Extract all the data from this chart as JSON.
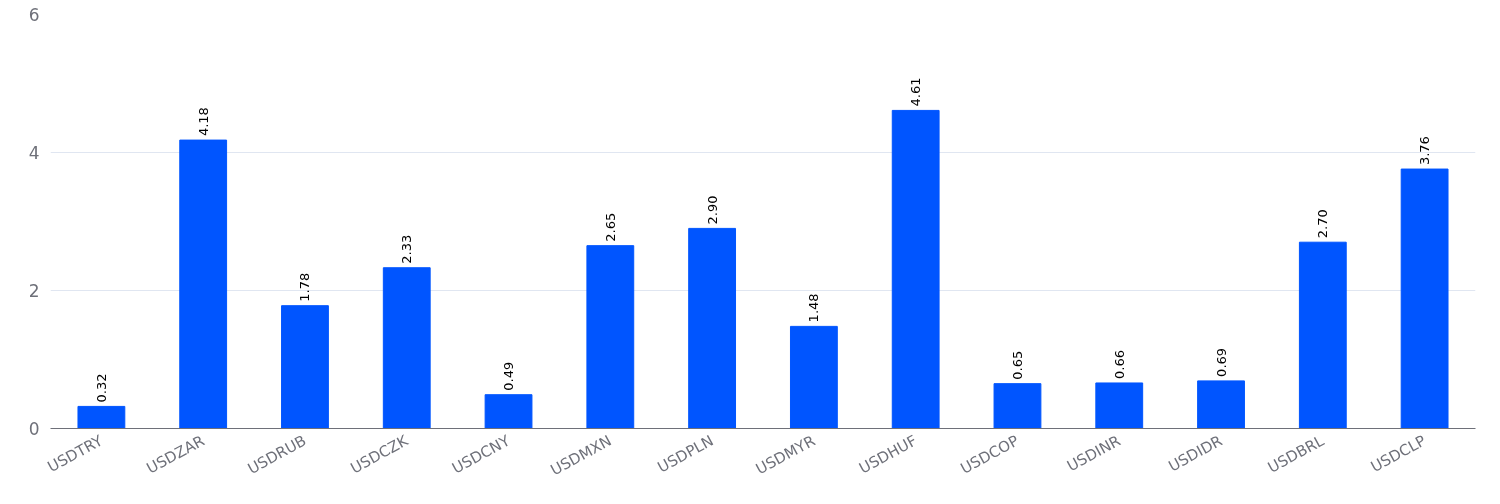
{
  "chart_data": {
    "type": "bar",
    "categories": [
      "USDTRY",
      "USDZAR",
      "USDRUB",
      "USDCZK",
      "USDCNY",
      "USDMXN",
      "USDPLN",
      "USDMYR",
      "USDHUF",
      "USDCOP",
      "USDINR",
      "USDIDR",
      "USDBRL",
      "USDCLP"
    ],
    "values": [
      0.32,
      4.18,
      1.78,
      2.33,
      0.49,
      2.65,
      2.9,
      1.48,
      4.61,
      0.65,
      0.66,
      0.69,
      2.7,
      3.76
    ],
    "value_labels": [
      "0.32",
      "4.18",
      "1.78",
      "2.33",
      "0.49",
      "2.65",
      "2.90",
      "1.48",
      "4.61",
      "0.65",
      "0.66",
      "0.69",
      "2.70",
      "3.76"
    ],
    "color": "#0055ff",
    "ylim": [
      0,
      6
    ],
    "yticks": [
      0,
      2,
      4,
      6
    ],
    "grid": "y"
  }
}
